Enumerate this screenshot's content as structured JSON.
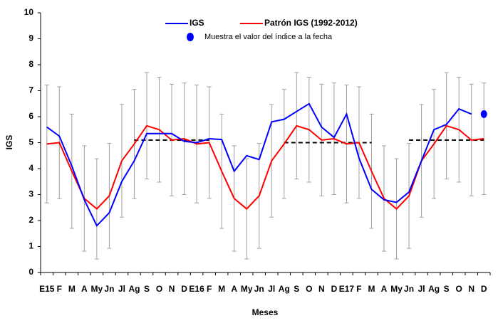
{
  "chart_data": {
    "type": "line",
    "xlabel": "Meses",
    "ylabel": "IGS",
    "categories": [
      "E15",
      "F",
      "M",
      "A",
      "My",
      "Jn",
      "Jl",
      "Ag",
      "S",
      "O",
      "N",
      "D",
      "E16",
      "F",
      "M",
      "A",
      "My",
      "Jn",
      "Jl",
      "Ag",
      "S",
      "O",
      "N",
      "D",
      "E17",
      "F",
      "M",
      "A",
      "My",
      "Jn",
      "Jl",
      "Ag",
      "S",
      "O",
      "N",
      "D"
    ],
    "ylim": [
      0,
      10
    ],
    "yticks": [
      0,
      1,
      2,
      3,
      4,
      5,
      6,
      7,
      8,
      9,
      10
    ],
    "series": [
      {
        "name": "IGS",
        "color": "#0000ff",
        "values": [
          5.6,
          5.25,
          4.1,
          2.8,
          1.8,
          2.3,
          3.5,
          4.3,
          5.35,
          5.35,
          5.35,
          5.05,
          5.0,
          5.15,
          5.12,
          3.9,
          4.5,
          4.35,
          5.8,
          5.9,
          6.2,
          6.5,
          5.6,
          5.2,
          6.1,
          4.4,
          3.2,
          2.8,
          2.7,
          3.1,
          4.3,
          5.5,
          5.7,
          6.3,
          6.1,
          null
        ]
      },
      {
        "name": "Patrón IGS (1992-2012)",
        "color": "#ff0000",
        "values": [
          4.95,
          5.0,
          3.9,
          2.85,
          2.45,
          2.95,
          4.3,
          4.95,
          5.65,
          5.5,
          5.1,
          5.15,
          4.95,
          5.0,
          3.9,
          2.85,
          2.45,
          2.95,
          4.3,
          4.95,
          5.65,
          5.5,
          5.1,
          5.15,
          4.95,
          5.0,
          3.9,
          2.85,
          2.45,
          2.95,
          4.3,
          4.95,
          5.65,
          5.5,
          5.1,
          5.15
        ],
        "errors": [
          2.27,
          2.15,
          2.2,
          2.03,
          1.93,
          2.02,
          2.17,
          2.1,
          2.05,
          2.02,
          2.15,
          2.15,
          2.27,
          2.15,
          2.2,
          2.03,
          1.93,
          2.02,
          2.17,
          2.1,
          2.05,
          2.02,
          2.15,
          2.15,
          2.27,
          2.15,
          2.2,
          2.03,
          1.93,
          2.02,
          2.17,
          2.1,
          2.05,
          2.02,
          2.15,
          2.15
        ],
        "error_color": "#a0a0a0"
      },
      {
        "name": "Muestra el valor del índice a la fecha",
        "color": "#0000ff",
        "marker": true,
        "values": [
          null,
          null,
          null,
          null,
          null,
          null,
          null,
          null,
          null,
          null,
          null,
          null,
          null,
          null,
          null,
          null,
          null,
          null,
          null,
          null,
          null,
          null,
          null,
          null,
          null,
          null,
          null,
          null,
          null,
          null,
          null,
          null,
          null,
          null,
          null,
          6.1
        ]
      }
    ],
    "mean_line": {
      "color": "#000000",
      "values": [
        null,
        null,
        null,
        null,
        null,
        null,
        null,
        5.1,
        5.1,
        5.1,
        5.1,
        5.1,
        5.1,
        5.1,
        null,
        null,
        null,
        null,
        null,
        5.0,
        5.0,
        5.0,
        5.0,
        5.0,
        5.0,
        5.0,
        5.0,
        null,
        null,
        5.1,
        5.1,
        5.1,
        5.1,
        5.1,
        5.1,
        5.1
      ]
    }
  }
}
